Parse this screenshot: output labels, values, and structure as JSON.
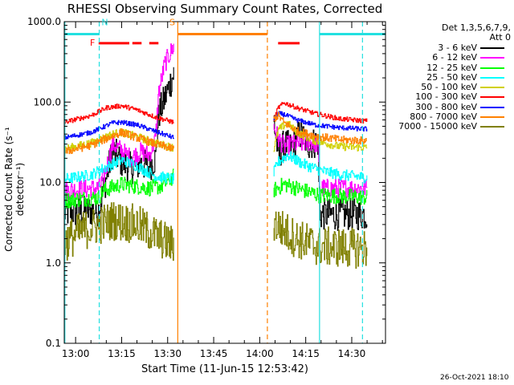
{
  "chart_data": {
    "type": "line",
    "title": "RHESSI Observing Summary Count Rates, Corrected",
    "xlabel": "Start Time (11-Jun-15 12:53:42)",
    "ylabel": "Corrected Count Rate (s⁻¹ detector⁻¹)",
    "yscale": "log",
    "xlim_minutes": [
      -3.7,
      101.0
    ],
    "ylim": [
      0.1,
      1000.0
    ],
    "x_ticks": [
      {
        "label": "13:00",
        "minute": 0
      },
      {
        "label": "13:15",
        "minute": 15
      },
      {
        "label": "13:30",
        "minute": 30
      },
      {
        "label": "13:45",
        "minute": 45
      },
      {
        "label": "14:00",
        "minute": 60
      },
      {
        "label": "14:15",
        "minute": 75
      },
      {
        "label": "14:30",
        "minute": 90
      }
    ],
    "y_ticks": [
      {
        "label": "0.1",
        "value": 0.1
      },
      {
        "label": "1.0",
        "value": 1.0
      },
      {
        "label": "10.0",
        "value": 10.0
      },
      {
        "label": "100.0",
        "value": 100.0
      },
      {
        "label": "1000.0",
        "value": 1000.0
      }
    ],
    "legend_title_lines": [
      "Det 1,3,5,6,7,9,",
      "Att 0"
    ],
    "legend_position": "right",
    "flag_labels": [
      {
        "text": "N",
        "minute": 9.5,
        "color": "#22e0e0"
      },
      {
        "text": "F",
        "minute": 5.5,
        "color": "#ff0000"
      },
      {
        "text": "S",
        "minute": 31.5,
        "color": "#ff8000"
      }
    ],
    "flag_bars": [
      {
        "name": "night",
        "color": "#22e0e0",
        "y": 700,
        "segments": [
          [
            -3.7,
            7.8
          ],
          [
            79.5,
            101.0
          ]
        ]
      },
      {
        "name": "flare",
        "color": "#ff0000",
        "y": 540,
        "segments": [
          [
            7.5,
            17.5
          ],
          [
            18.5,
            21.5
          ],
          [
            24.0,
            27.0
          ],
          [
            66.0,
            73.0
          ]
        ]
      },
      {
        "name": "saa",
        "color": "#ff8000",
        "y": 700,
        "segments": [
          [
            33.3,
            62.5
          ]
        ]
      }
    ],
    "vlines": [
      {
        "minute": -3.5,
        "color": "#22e0e0",
        "style": "solid"
      },
      {
        "minute": 7.7,
        "color": "#22e0e0",
        "style": "dashed"
      },
      {
        "minute": 33.3,
        "color": "#ff8000",
        "style": "solid"
      },
      {
        "minute": 62.5,
        "color": "#ff8000",
        "style": "dashed"
      },
      {
        "minute": 79.5,
        "color": "#22e0e0",
        "style": "solid"
      },
      {
        "minute": 93.5,
        "color": "#22e0e0",
        "style": "dashed"
      }
    ],
    "series": [
      {
        "name": "3 - 6 keV",
        "color": "#000000",
        "noise": 0.2,
        "segments": [
          [
            [
              -3.7,
              4.2
            ],
            [
              7.5,
              4.5
            ],
            [
              9.0,
              8.0
            ],
            [
              12,
              25
            ],
            [
              15,
              18
            ],
            [
              18,
              15
            ],
            [
              21,
              17
            ],
            [
              24,
              16
            ],
            [
              26,
              20
            ],
            [
              27,
              70
            ],
            [
              29,
              110
            ],
            [
              32,
              230
            ]
          ],
          [
            [
              64.5,
              60
            ],
            [
              66,
              22
            ],
            [
              68,
              30
            ],
            [
              70,
              27
            ],
            [
              73,
              40
            ],
            [
              76,
              30
            ],
            [
              79.0,
              32
            ],
            [
              79.5,
              4.0
            ],
            [
              95.0,
              4.0
            ]
          ]
        ]
      },
      {
        "name": "6 - 12 keV",
        "color": "#ff00ff",
        "noise": 0.12,
        "segments": [
          [
            [
              -3.7,
              8.0
            ],
            [
              7.5,
              8.5
            ],
            [
              9.0,
              11
            ],
            [
              12,
              30
            ],
            [
              15,
              25
            ],
            [
              18,
              20
            ],
            [
              21,
              24
            ],
            [
              24,
              22
            ],
            [
              26,
              35
            ],
            [
              27,
              130
            ],
            [
              29,
              300
            ],
            [
              32,
              500
            ]
          ],
          [
            [
              64.5,
              50
            ],
            [
              66,
              35
            ],
            [
              68,
              28
            ],
            [
              70,
              30
            ],
            [
              73,
              30
            ],
            [
              76,
              32
            ],
            [
              79.0,
              30
            ],
            [
              79.5,
              8.5
            ],
            [
              95.0,
              8.5
            ]
          ]
        ]
      },
      {
        "name": "12 - 25 keV",
        "color": "#00ff00",
        "noise": 0.1,
        "segments": [
          [
            [
              -3.7,
              6.0
            ],
            [
              7.5,
              6.5
            ],
            [
              9.0,
              8.0
            ],
            [
              15,
              9.5
            ],
            [
              24,
              8.5
            ],
            [
              28,
              9.0
            ],
            [
              32,
              12.0
            ]
          ],
          [
            [
              64.5,
              8.0
            ],
            [
              68,
              9.5
            ],
            [
              79.0,
              7.0
            ],
            [
              95.0,
              6.5
            ]
          ]
        ]
      },
      {
        "name": "25 - 50 keV",
        "color": "#00ffff",
        "noise": 0.07,
        "segments": [
          [
            [
              -3.7,
              11
            ],
            [
              5,
              12.5
            ],
            [
              12,
              17
            ],
            [
              15,
              19
            ],
            [
              20,
              16
            ],
            [
              26,
              12
            ],
            [
              32,
              11
            ]
          ],
          [
            [
              64.5,
              13
            ],
            [
              66,
              18
            ],
            [
              69,
              22
            ],
            [
              74,
              17
            ],
            [
              80,
              14
            ],
            [
              86,
              12.5
            ],
            [
              95.0,
              11.5
            ]
          ]
        ]
      },
      {
        "name": "50 - 100 keV",
        "color": "#d0d000",
        "noise": 0.05,
        "segments": [
          [
            [
              -3.7,
              26
            ],
            [
              5,
              31
            ],
            [
              12,
              40
            ],
            [
              15,
              42
            ],
            [
              20,
              37
            ],
            [
              26,
              31
            ],
            [
              32,
              27
            ]
          ],
          [
            [
              64.5,
              25
            ],
            [
              66,
              45
            ],
            [
              69,
              55
            ],
            [
              72,
              42
            ],
            [
              78,
              33
            ],
            [
              86,
              28
            ],
            [
              95.0,
              27
            ]
          ]
        ]
      },
      {
        "name": "100 - 300 keV",
        "color": "#ff0000",
        "noise": 0.03,
        "segments": [
          [
            [
              -3.7,
              56
            ],
            [
              5,
              68
            ],
            [
              10,
              85
            ],
            [
              15,
              90
            ],
            [
              20,
              80
            ],
            [
              26,
              65
            ],
            [
              32,
              56
            ]
          ],
          [
            [
              64.5,
              60
            ],
            [
              66,
              85
            ],
            [
              68,
              98
            ],
            [
              72,
              85
            ],
            [
              78,
              72
            ],
            [
              86,
              62
            ],
            [
              95.0,
              58
            ]
          ]
        ]
      },
      {
        "name": "300 - 800 keV",
        "color": "#0000ff",
        "noise": 0.03,
        "segments": [
          [
            [
              -3.7,
              36
            ],
            [
              5,
              42
            ],
            [
              12,
              55
            ],
            [
              15,
              56
            ],
            [
              20,
              52
            ],
            [
              26,
              43
            ],
            [
              32,
              36
            ]
          ],
          [
            [
              64.5,
              60
            ],
            [
              66,
              72
            ],
            [
              68,
              70
            ],
            [
              72,
              60
            ],
            [
              78,
              52
            ],
            [
              86,
              48
            ],
            [
              95.0,
              46
            ]
          ]
        ]
      },
      {
        "name": "800 - 7000 keV",
        "color": "#ff8000",
        "noise": 0.05,
        "segments": [
          [
            [
              -3.7,
              24
            ],
            [
              5,
              29
            ],
            [
              12,
              38
            ],
            [
              15,
              42
            ],
            [
              20,
              36
            ],
            [
              26,
              30
            ],
            [
              32,
              26
            ]
          ],
          [
            [
              64.5,
              62
            ],
            [
              66,
              68
            ],
            [
              68,
              55
            ],
            [
              72,
              44
            ],
            [
              78,
              38
            ],
            [
              86,
              34
            ],
            [
              95.0,
              33
            ]
          ]
        ]
      },
      {
        "name": "7000 - 15000 keV",
        "color": "#808000",
        "noise": 0.25,
        "segments": [
          [
            [
              -3.7,
              1.8
            ],
            [
              2,
              2.5
            ],
            [
              8,
              3.0
            ],
            [
              12,
              3.4
            ],
            [
              20,
              3.0
            ],
            [
              26,
              2.2
            ],
            [
              32,
              1.6
            ]
          ],
          [
            [
              64.5,
              3.2
            ],
            [
              68,
              2.5
            ],
            [
              72,
              2.0
            ],
            [
              79.0,
              1.6
            ],
            [
              95.0,
              1.5
            ]
          ]
        ]
      }
    ],
    "timestamp": "26-Oct-2021 18:10"
  }
}
